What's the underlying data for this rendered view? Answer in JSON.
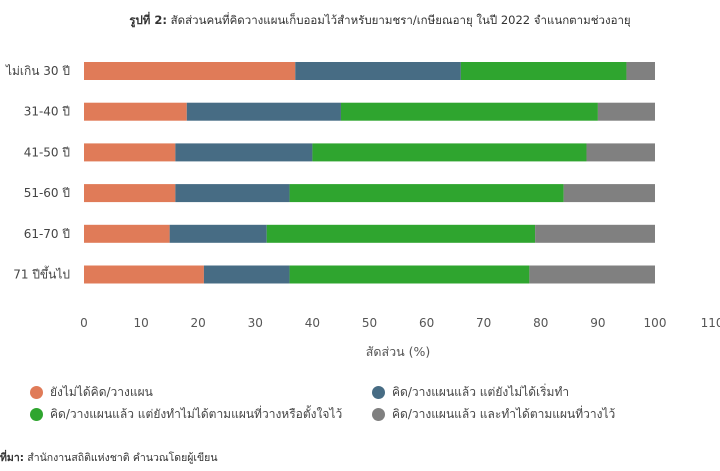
{
  "title": {
    "prefix": "รูปที่ 2:",
    "text": " สัดส่วนคนที่คิดวางแผนเก็บออมไว้สำหรับยามชรา/เกษียณอายุ ในปี 2022 จำแนกตามช่วงอายุ"
  },
  "source": {
    "prefix": "ที่มา:",
    "text": " สำนักงานสถิติแห่งชาติ คำนวณโดยผู้เขียน"
  },
  "colors": {
    "s1": "#e07b58",
    "s2": "#476c84",
    "s3": "#2fa52f",
    "s4": "#808080"
  },
  "chart_data": {
    "type": "bar",
    "orientation": "horizontal",
    "stacked": true,
    "categories": [
      "ไม่เกิน 30 ปี",
      "31-40 ปี",
      "41-50 ปี",
      "51-60 ปี",
      "61-70 ปี",
      "71 ปีขึ้นไป"
    ],
    "series": [
      {
        "name": "ยังไม่ได้คิด/วางแผน",
        "values": [
          37,
          18,
          16,
          16,
          15,
          21
        ]
      },
      {
        "name": "คิด/วางแผนแล้ว แต่ยังไม่ได้เริ่มทำ",
        "values": [
          29,
          27,
          24,
          20,
          17,
          15
        ]
      },
      {
        "name": "คิด/วางแผนแล้ว แต่ยังทำไม่ได้ตามแผนที่วางหรือตั้งใจไว้",
        "values": [
          29,
          45,
          48,
          48,
          47,
          42
        ]
      },
      {
        "name": "คิด/วางแผนแล้ว และทำได้ตามแผนที่วางไว้",
        "values": [
          5,
          10,
          12,
          16,
          21,
          22
        ]
      }
    ],
    "xlabel": "สัดส่วน (%)",
    "ylabel": "",
    "xlim": [
      0,
      110
    ],
    "xticks": [
      0,
      10,
      20,
      30,
      40,
      50,
      60,
      70,
      80,
      90,
      100,
      110
    ],
    "grid": false,
    "legend_position": "bottom"
  }
}
